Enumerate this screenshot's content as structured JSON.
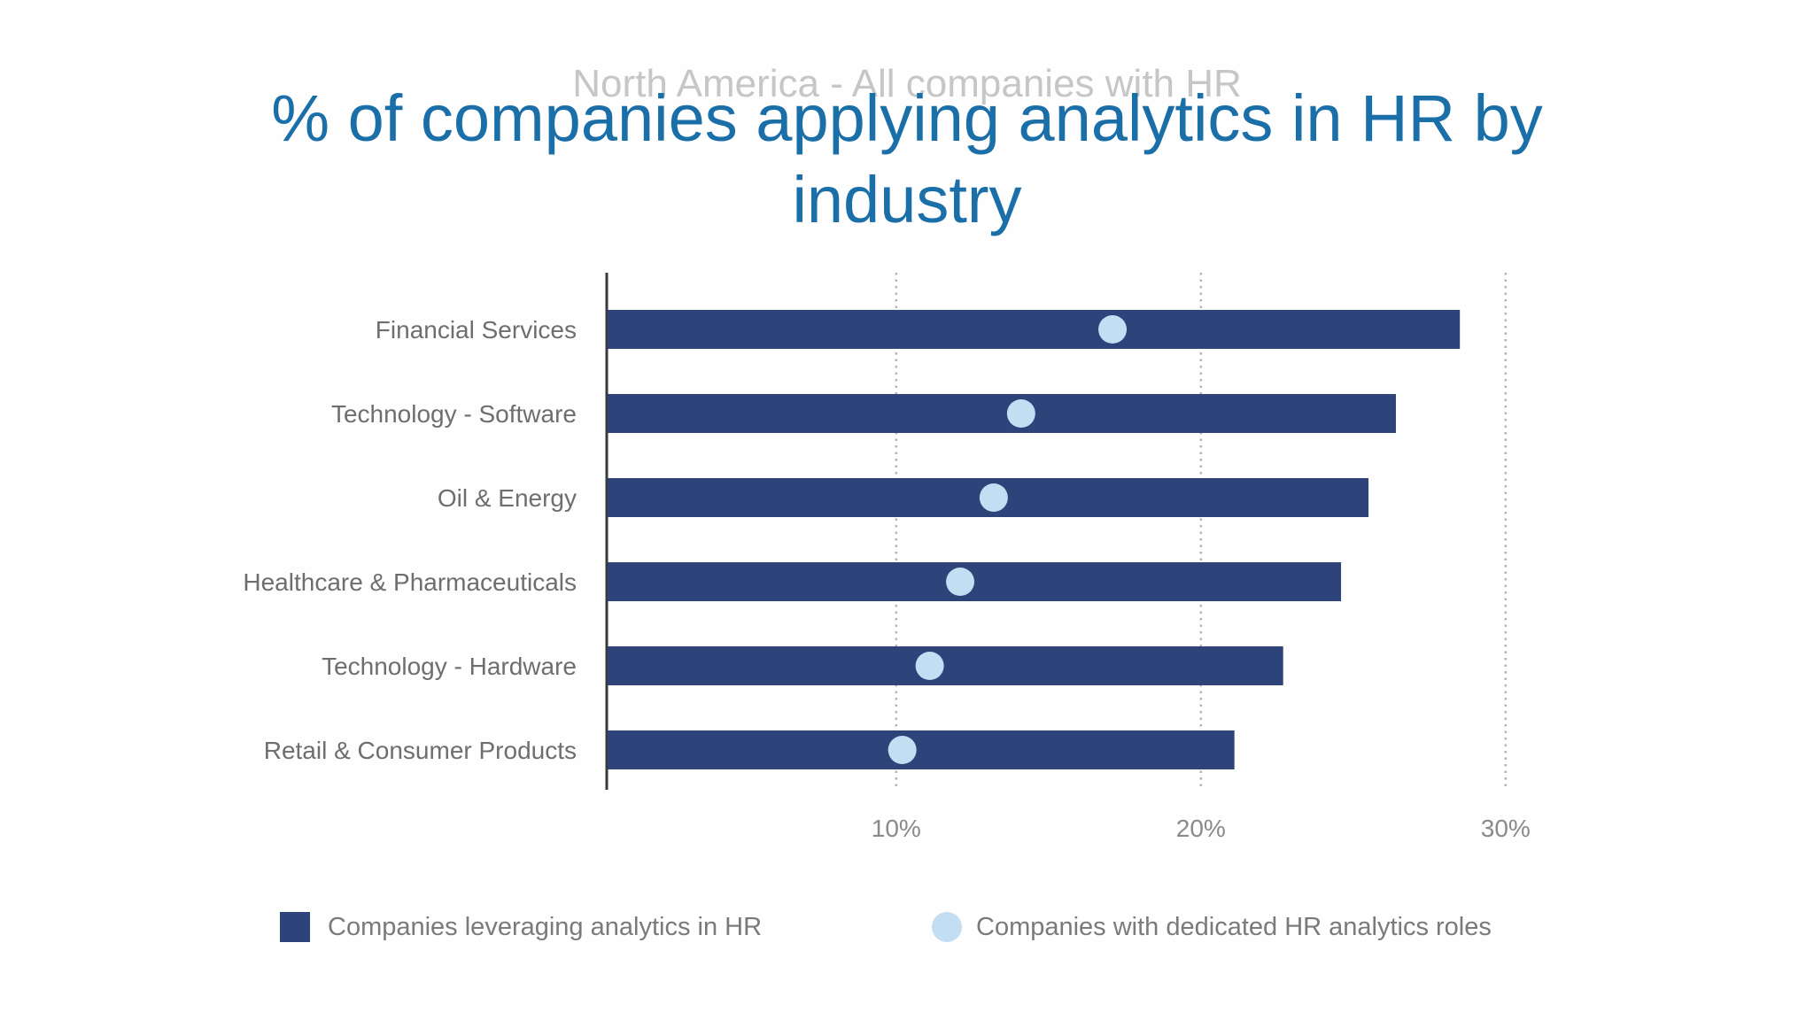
{
  "header": {
    "subtitle": "North America - All companies with HR",
    "title_line1": "% of companies applying analytics in HR by",
    "title_line2": "industry"
  },
  "colors": {
    "bar": "#2d4379",
    "dot": "#c3ddf3",
    "title": "#1a6fa8"
  },
  "chart_data": {
    "type": "bar",
    "orientation": "horizontal",
    "title": "% of companies applying analytics in HR by industry",
    "subtitle": "North America - All companies with HR",
    "categories": [
      "Financial Services",
      "Technology - Software",
      "Oil & Energy",
      "Healthcare & Pharmaceuticals",
      "Technology - Hardware",
      "Retail & Consumer Products"
    ],
    "series": [
      {
        "name": "Companies leveraging analytics in HR",
        "type": "bar",
        "values": [
          28.5,
          26.4,
          25.5,
          24.6,
          22.7,
          21.1
        ]
      },
      {
        "name": "Companies with dedicated HR analytics roles",
        "type": "dot",
        "values": [
          17.1,
          14.1,
          13.2,
          12.1,
          11.1,
          10.2
        ]
      }
    ],
    "xlim": [
      0.5,
      30
    ],
    "xticks": [
      10,
      20,
      30
    ],
    "xtick_labels": [
      "10%",
      "20%",
      "30%"
    ],
    "grid": "vertical dotted",
    "legend_position": "bottom"
  }
}
